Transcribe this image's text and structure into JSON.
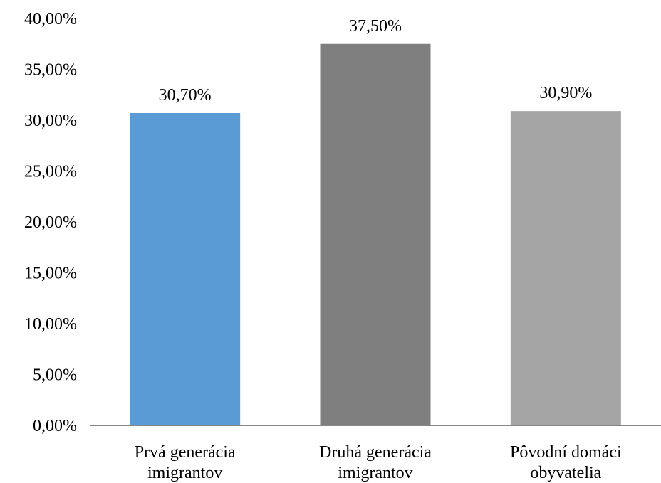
{
  "chart_data": {
    "type": "bar",
    "categories": [
      [
        "Prvá generácia",
        "imigrantov"
      ],
      [
        "Druhá generácia",
        "imigrantov"
      ],
      [
        "Pôvodní domáci",
        "obyvatelia"
      ]
    ],
    "values": [
      30.7,
      37.5,
      30.9
    ],
    "data_labels": [
      "30,70%",
      "37,50%",
      "30,90%"
    ],
    "bar_colors": [
      "#5b9bd5",
      "#7f7f7f",
      "#a5a5a5"
    ],
    "ylim": [
      0,
      40
    ],
    "yticks": [
      0,
      5,
      10,
      15,
      20,
      25,
      30,
      35,
      40
    ],
    "ytick_labels": [
      "0,00%",
      "5,00%",
      "10,00%",
      "15,00%",
      "20,00%",
      "25,00%",
      "30,00%",
      "35,00%",
      "40,00%"
    ],
    "grid": false,
    "legend": "none",
    "title": "",
    "xlabel": "",
    "ylabel": ""
  }
}
